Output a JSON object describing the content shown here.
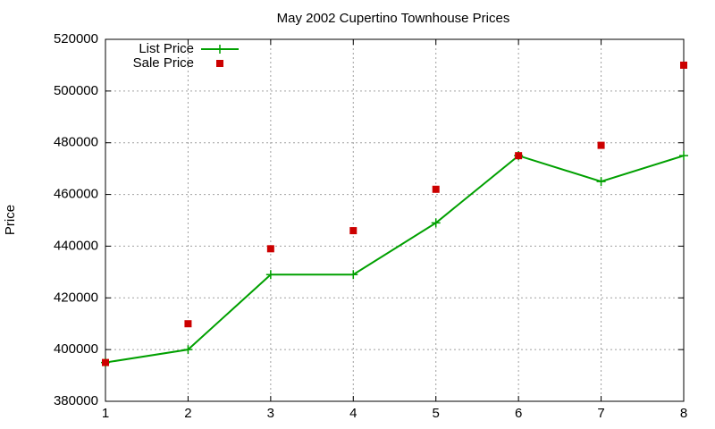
{
  "chart_data": {
    "type": "line",
    "title": "May 2002 Cupertino Townhouse Prices",
    "y_label": "Price",
    "x": [
      1,
      2,
      3,
      4,
      5,
      6,
      7,
      8
    ],
    "series": [
      {
        "name": "List Price",
        "color": "#00a000",
        "mode": "lines+markers",
        "values": [
          395000,
          400000,
          429000,
          429000,
          449000,
          475000,
          465000,
          475000
        ]
      },
      {
        "name": "Sale Price",
        "color": "#cc0000",
        "mode": "markers",
        "values": [
          395000,
          410000,
          439000,
          446000,
          462000,
          475000,
          479000,
          510000
        ]
      }
    ],
    "xlim": [
      1,
      8
    ],
    "xticks": [
      1,
      2,
      3,
      4,
      5,
      6,
      7,
      8
    ],
    "ylim": [
      380000,
      520000
    ],
    "yticks": [
      380000,
      400000,
      420000,
      440000,
      460000,
      480000,
      500000,
      520000
    ],
    "grid": true,
    "legend_position": "top-left"
  }
}
